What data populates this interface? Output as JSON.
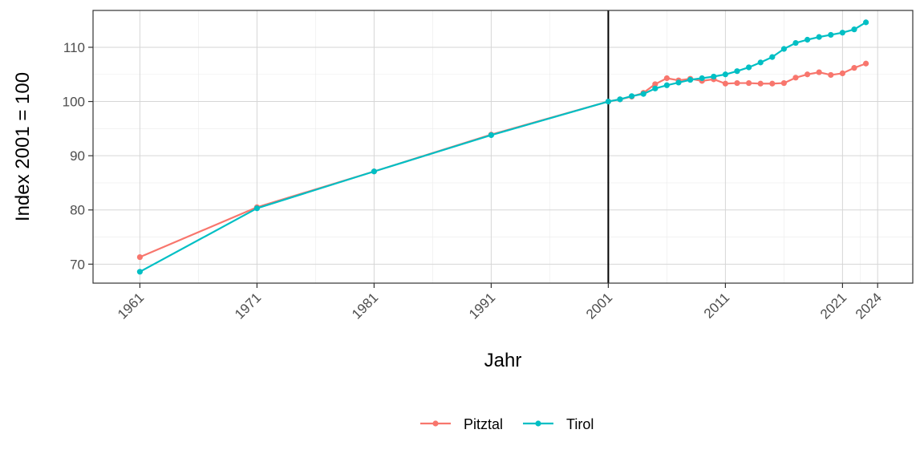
{
  "chart_data": {
    "type": "line",
    "xlabel": "Jahr",
    "ylabel": "Index 2001 = 100",
    "xlim": [
      1957,
      2027
    ],
    "ylim": [
      66.5,
      116.8
    ],
    "x_ticks": [
      1961,
      1971,
      1981,
      1991,
      2001,
      2011,
      2021,
      2024
    ],
    "y_ticks": [
      70,
      80,
      90,
      100,
      110
    ],
    "x_tick_labels": [
      "1961",
      "1971",
      "1981",
      "1991",
      "2001",
      "2011",
      "2021",
      "2024"
    ],
    "y_tick_labels": [
      "70",
      "80",
      "90",
      "100",
      "110"
    ],
    "reference_line_x": 2001,
    "grid": true,
    "legend_position": "bottom",
    "series": [
      {
        "name": "Pitztal",
        "color": "#F8766D",
        "x": [
          1961,
          1971,
          1981,
          1991,
          2001,
          2002,
          2003,
          2004,
          2005,
          2006,
          2007,
          2008,
          2009,
          2010,
          2011,
          2012,
          2013,
          2014,
          2015,
          2016,
          2017,
          2018,
          2019,
          2020,
          2021,
          2022,
          2023
        ],
        "y": [
          71.3,
          80.5,
          87.1,
          93.9,
          100.0,
          100.4,
          100.9,
          101.6,
          103.2,
          104.3,
          103.9,
          104.2,
          103.8,
          104.1,
          103.3,
          103.4,
          103.4,
          103.3,
          103.3,
          103.4,
          104.4,
          105.0,
          105.4,
          104.9,
          105.2,
          106.2,
          107.0
        ]
      },
      {
        "name": "Tirol",
        "color": "#00BFC4",
        "x": [
          1961,
          1971,
          1981,
          1991,
          2001,
          2002,
          2003,
          2004,
          2005,
          2006,
          2007,
          2008,
          2009,
          2010,
          2011,
          2012,
          2013,
          2014,
          2015,
          2016,
          2017,
          2018,
          2019,
          2020,
          2021,
          2022,
          2023
        ],
        "y": [
          68.6,
          80.3,
          87.1,
          93.8,
          100.0,
          100.4,
          101.0,
          101.4,
          102.4,
          103.0,
          103.5,
          104.0,
          104.3,
          104.6,
          105.0,
          105.6,
          106.3,
          107.2,
          108.2,
          109.7,
          110.8,
          111.4,
          111.9,
          112.3,
          112.7,
          113.3,
          114.6
        ]
      }
    ]
  }
}
